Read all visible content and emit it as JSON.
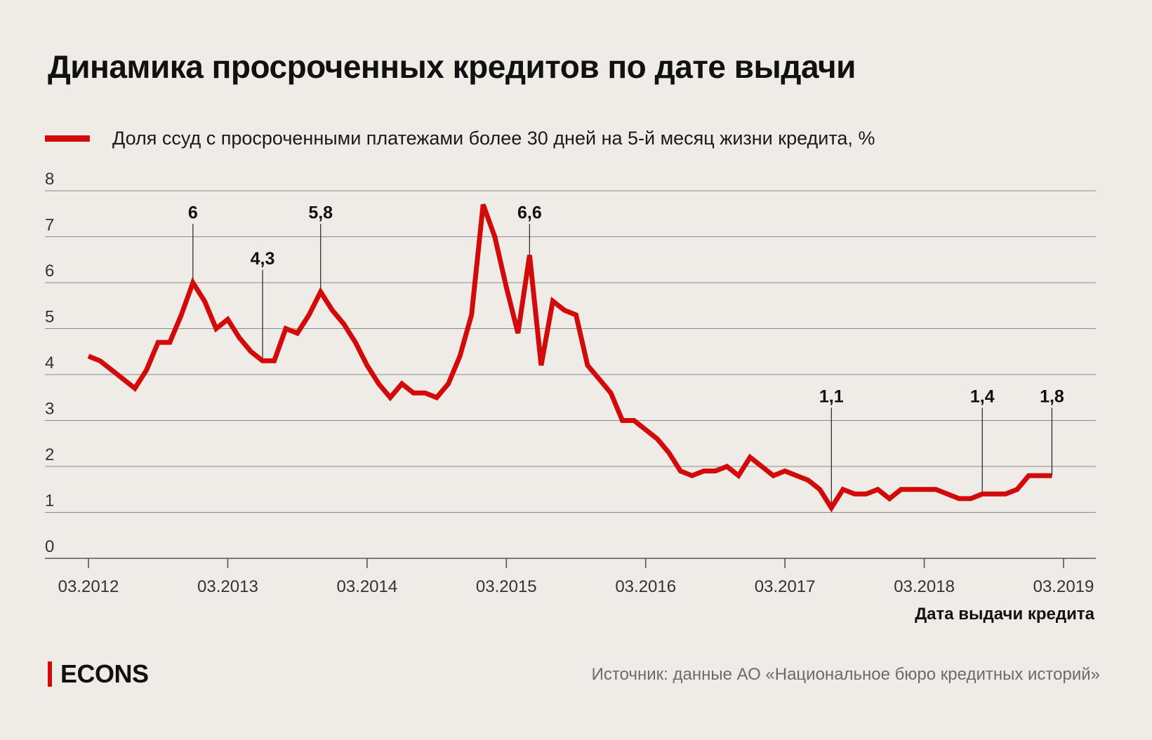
{
  "title": "Динамика просроченных кредитов по дате выдачи",
  "legend_label": "Доля ссуд с просроченными платежами более 30 дней на 5-й месяц жизни кредита, %",
  "x_axis_label": "Дата выдачи кредита",
  "source": "Источник: данные АО «Национальное бюро кредитных историй»",
  "brand": "ECONS",
  "colors": {
    "background": "#efece7",
    "line": "#d20a0a",
    "grid": "#8a8a8a",
    "text": "#111111",
    "muted": "#6b6b6b"
  },
  "chart_data": {
    "type": "line",
    "xlabel": "Дата выдачи кредита",
    "ylabel": "",
    "ylim": [
      0,
      8
    ],
    "yticks": [
      "0",
      "1",
      "2",
      "3",
      "4",
      "5",
      "6",
      "7",
      "8"
    ],
    "xticks": [
      {
        "date": "2012-03",
        "label": "03.2012"
      },
      {
        "date": "2013-03",
        "label": "03.2013"
      },
      {
        "date": "2014-03",
        "label": "03.2014"
      },
      {
        "date": "2015-03",
        "label": "03.2015"
      },
      {
        "date": "2016-03",
        "label": "03.2016"
      },
      {
        "date": "2017-03",
        "label": "03.2017"
      },
      {
        "date": "2018-03",
        "label": "03.2018"
      },
      {
        "date": "2019-03",
        "label": "03.2019"
      }
    ],
    "grid": "horizontal",
    "series": [
      {
        "name": "Доля ссуд с просроченными платежами более 30 дней на 5-й месяц жизни кредита, %",
        "x": [
          "2012-03",
          "2012-04",
          "2012-05",
          "2012-06",
          "2012-07",
          "2012-08",
          "2012-09",
          "2012-10",
          "2012-11",
          "2012-12",
          "2013-01",
          "2013-02",
          "2013-03",
          "2013-04",
          "2013-05",
          "2013-06",
          "2013-07",
          "2013-08",
          "2013-09",
          "2013-10",
          "2013-11",
          "2013-12",
          "2014-01",
          "2014-02",
          "2014-03",
          "2014-04",
          "2014-05",
          "2014-06",
          "2014-07",
          "2014-08",
          "2014-09",
          "2014-10",
          "2014-11",
          "2014-12",
          "2015-01",
          "2015-02",
          "2015-03",
          "2015-04",
          "2015-05",
          "2015-06",
          "2015-07",
          "2015-08",
          "2015-09",
          "2015-10",
          "2015-11",
          "2015-12",
          "2016-01",
          "2016-02",
          "2016-03",
          "2016-04",
          "2016-05",
          "2016-06",
          "2016-07",
          "2016-08",
          "2016-09",
          "2016-10",
          "2016-11",
          "2016-12",
          "2017-01",
          "2017-02",
          "2017-03",
          "2017-04",
          "2017-05",
          "2017-06",
          "2017-07",
          "2017-08",
          "2017-09",
          "2017-10",
          "2017-11",
          "2017-12",
          "2018-01",
          "2018-02",
          "2018-03",
          "2018-04",
          "2018-05",
          "2018-06",
          "2018-07",
          "2018-08",
          "2018-09",
          "2018-10",
          "2018-11",
          "2018-12",
          "2019-01",
          "2019-02"
        ],
        "values": [
          4.4,
          4.3,
          4.1,
          3.9,
          3.7,
          4.1,
          4.7,
          4.7,
          5.3,
          6.0,
          5.6,
          5.0,
          5.2,
          4.8,
          4.5,
          4.3,
          4.3,
          5.0,
          4.9,
          5.3,
          5.8,
          5.4,
          5.1,
          4.7,
          4.2,
          3.8,
          3.5,
          3.8,
          3.6,
          3.6,
          3.5,
          3.8,
          4.4,
          5.3,
          7.7,
          7.0,
          5.9,
          4.9,
          6.6,
          4.2,
          5.6,
          5.4,
          5.3,
          4.2,
          3.9,
          3.6,
          3.0,
          3.0,
          2.8,
          2.6,
          2.3,
          1.9,
          1.8,
          1.9,
          1.9,
          2.0,
          1.8,
          2.2,
          2.0,
          1.8,
          1.9,
          1.8,
          1.7,
          1.5,
          1.1,
          1.5,
          1.4,
          1.4,
          1.5,
          1.3,
          1.5,
          1.5,
          1.5,
          1.5,
          1.4,
          1.3,
          1.3,
          1.4,
          1.4,
          1.4,
          1.5,
          1.8,
          1.8,
          1.8
        ]
      }
    ],
    "annotations": [
      {
        "x": "2012-12",
        "y": 6.0,
        "label": "6",
        "label_level": 7.4
      },
      {
        "x": "2013-06",
        "y": 4.3,
        "label": "4,3",
        "label_level": 6.4
      },
      {
        "x": "2013-11",
        "y": 5.8,
        "label": "5,8",
        "label_level": 7.4
      },
      {
        "x": "2015-05",
        "y": 6.6,
        "label": "6,6",
        "label_level": 7.4
      },
      {
        "x": "2017-07",
        "y": 1.1,
        "label": "1,1",
        "label_level": 3.4
      },
      {
        "x": "2018-08",
        "y": 1.4,
        "label": "1,4",
        "label_level": 3.4
      },
      {
        "x": "2019-02",
        "y": 1.8,
        "label": "1,8",
        "label_level": 3.4
      }
    ]
  }
}
